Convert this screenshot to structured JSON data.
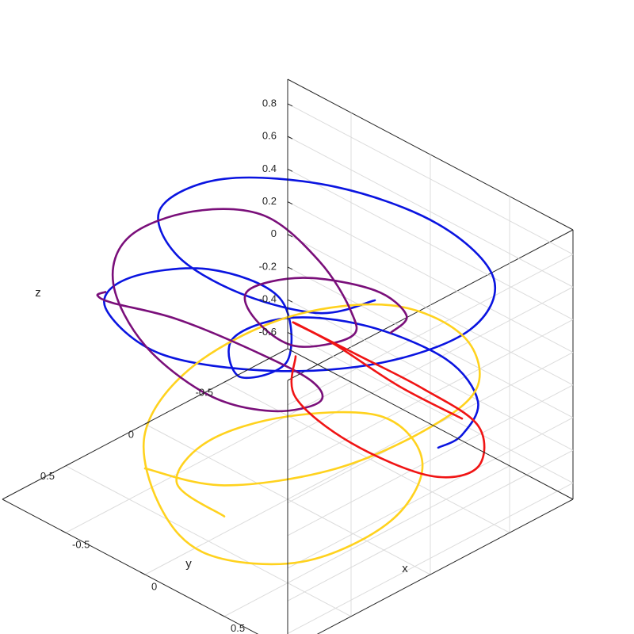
{
  "chart_data": {
    "type": "line",
    "projection": "3d",
    "title": "",
    "xlabel": "x",
    "ylabel": "y",
    "zlabel": "z",
    "xlim": [
      -0.9,
      0.9
    ],
    "ylim": [
      -0.9,
      0.9
    ],
    "zlim": [
      -0.7,
      0.95
    ],
    "x_ticks": [
      -0.5,
      0,
      0.5
    ],
    "y_ticks": [
      -0.5,
      0,
      0.5
    ],
    "z_ticks": [
      -0.6,
      -0.4,
      -0.2,
      0,
      0.2,
      0.4,
      0.6,
      0.8
    ],
    "x_tick_labels": [
      "-0.5",
      "0",
      "0.5"
    ],
    "y_tick_labels": [
      "-0.5",
      "0",
      "0.5"
    ],
    "z_tick_labels": [
      "-0.6",
      "-0.4",
      "-0.2",
      "0",
      "0.2",
      "0.4",
      "0.6",
      "0.8"
    ],
    "grid": true,
    "box": true,
    "series": [
      {
        "color": "#0a14e0",
        "description": "helical curve winding upward around the z-axis",
        "points": [
          [
            0.85,
            -0.1,
            0.0
          ],
          [
            0.8,
            -0.3,
            -0.05
          ],
          [
            0.6,
            -0.6,
            -0.1
          ],
          [
            0.2,
            -0.8,
            -0.15
          ],
          [
            -0.2,
            -0.7,
            -0.1
          ],
          [
            -0.4,
            -0.4,
            0.0
          ],
          [
            -0.35,
            0.0,
            0.1
          ],
          [
            -0.1,
            0.2,
            0.1
          ],
          [
            0.0,
            0.0,
            0.15
          ],
          [
            -0.3,
            -0.25,
            0.25
          ],
          [
            -0.6,
            -0.1,
            0.35
          ],
          [
            -0.7,
            0.3,
            0.45
          ],
          [
            -0.5,
            0.65,
            0.55
          ],
          [
            0.0,
            0.8,
            0.6
          ],
          [
            0.5,
            0.6,
            0.65
          ],
          [
            0.8,
            0.2,
            0.65
          ],
          [
            0.85,
            -0.3,
            0.62
          ],
          [
            0.6,
            -0.7,
            0.6
          ],
          [
            0.1,
            -0.85,
            0.6
          ],
          [
            -0.4,
            -0.7,
            0.65
          ],
          [
            -0.7,
            -0.3,
            0.75
          ],
          [
            -0.6,
            0.2,
            0.88
          ],
          [
            -0.2,
            0.5,
            0.95
          ],
          [
            0.2,
            0.5,
            0.92
          ],
          [
            0.5,
            0.3,
            0.85
          ],
          [
            0.55,
            0.0,
            0.8
          ]
        ]
      },
      {
        "color": "#ffd21e",
        "description": "curve looping through the lower half of the plot box",
        "points": [
          [
            0.0,
            0.9,
            -0.05
          ],
          [
            0.4,
            0.8,
            0.0
          ],
          [
            0.7,
            0.4,
            0.05
          ],
          [
            0.8,
            -0.1,
            0.1
          ],
          [
            0.7,
            -0.5,
            0.1
          ],
          [
            0.3,
            -0.8,
            0.05
          ],
          [
            -0.2,
            -0.85,
            -0.05
          ],
          [
            -0.6,
            -0.6,
            -0.2
          ],
          [
            -0.8,
            -0.2,
            -0.4
          ],
          [
            -0.7,
            0.2,
            -0.55
          ],
          [
            -0.3,
            0.5,
            -0.65
          ],
          [
            0.1,
            0.6,
            -0.68
          ],
          [
            0.5,
            0.4,
            -0.62
          ],
          [
            0.65,
            0.0,
            -0.5
          ],
          [
            0.5,
            -0.35,
            -0.4
          ],
          [
            0.1,
            -0.5,
            -0.4
          ],
          [
            -0.3,
            -0.3,
            -0.5
          ],
          [
            -0.5,
            0.0,
            -0.6
          ],
          [
            -0.4,
            0.3,
            -0.65
          ],
          [
            0.0,
            0.4,
            -0.6
          ]
        ]
      },
      {
        "color": "#7a0f7a",
        "description": "curve spiraling around the upper-left of the plot box",
        "points": [
          [
            0.55,
            -0.1,
            0.55
          ],
          [
            0.4,
            -0.35,
            0.45
          ],
          [
            0.1,
            -0.45,
            0.4
          ],
          [
            -0.2,
            -0.3,
            0.4
          ],
          [
            -0.25,
            0.0,
            0.45
          ],
          [
            0.0,
            0.2,
            0.5
          ],
          [
            0.3,
            0.25,
            0.52
          ],
          [
            0.4,
            0.0,
            0.5
          ],
          [
            0.2,
            -0.2,
            0.45
          ],
          [
            -0.2,
            -0.4,
            0.45
          ],
          [
            -0.6,
            -0.45,
            0.5
          ],
          [
            -0.8,
            -0.2,
            0.55
          ],
          [
            -0.8,
            0.2,
            0.6
          ],
          [
            -0.55,
            0.55,
            0.62
          ],
          [
            -0.15,
            0.75,
            0.55
          ],
          [
            0.2,
            0.7,
            0.4
          ],
          [
            0.35,
            0.45,
            0.25
          ],
          [
            0.3,
            0.1,
            0.1
          ],
          [
            0.1,
            -0.05,
            0.05
          ],
          [
            -0.2,
            0.0,
            0.1
          ],
          [
            -0.5,
            0.2,
            0.25
          ],
          [
            -0.6,
            0.5,
            0.45
          ],
          [
            -0.5,
            0.7,
            0.65
          ],
          [
            -0.35,
            0.8,
            0.8
          ]
        ]
      },
      {
        "color": "#f01414",
        "description": "curve descending along the front-right of the plot box",
        "points": [
          [
            0.8,
            -0.3,
            0.05
          ],
          [
            0.6,
            -0.1,
            0.25
          ],
          [
            0.3,
            0.0,
            0.4
          ],
          [
            0.05,
            0.0,
            0.4
          ],
          [
            -0.05,
            -0.15,
            0.25
          ],
          [
            0.05,
            -0.4,
            0.0
          ],
          [
            0.25,
            -0.6,
            -0.2
          ],
          [
            0.5,
            -0.7,
            -0.35
          ],
          [
            0.7,
            -0.5,
            -0.4
          ],
          [
            0.7,
            -0.2,
            -0.3
          ],
          [
            0.4,
            0.0,
            -0.15
          ],
          [
            0.1,
            0.05,
            0.0
          ],
          [
            0.0,
            -0.05,
            0.15
          ]
        ]
      }
    ]
  }
}
